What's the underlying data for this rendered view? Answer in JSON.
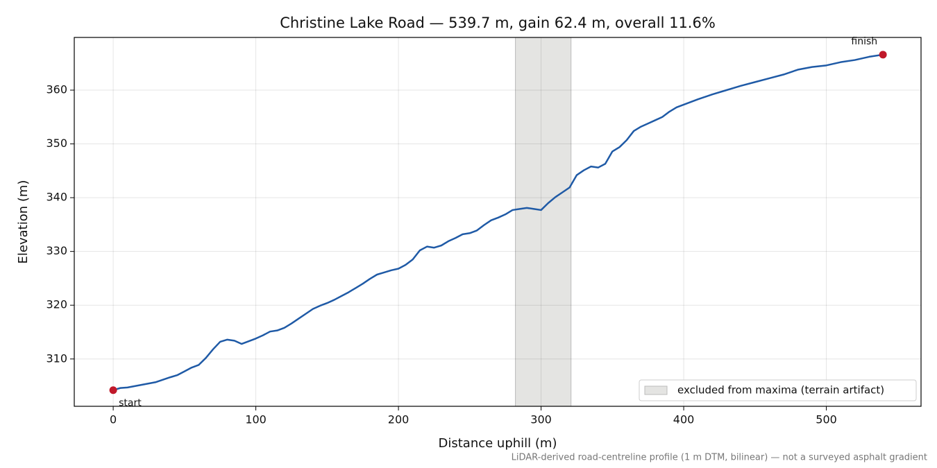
{
  "chart_data": {
    "type": "line",
    "title": "Christine Lake Road — 539.7 m, gain 62.4 m, overall 11.6%",
    "x_label": "Distance uphill (m)",
    "y_label": "Elevation (m)",
    "note": "LiDAR-derived road-centreline profile (1 m DTM, bilinear) — not a surveyed asphalt gradient",
    "x": [
      0,
      5,
      10,
      20,
      30,
      40,
      45,
      50,
      55,
      60,
      65,
      70,
      75,
      80,
      85,
      90,
      95,
      100,
      105,
      110,
      115,
      120,
      125,
      130,
      135,
      140,
      145,
      150,
      155,
      160,
      165,
      170,
      175,
      180,
      185,
      190,
      195,
      200,
      205,
      210,
      215,
      220,
      225,
      230,
      235,
      240,
      245,
      250,
      255,
      260,
      265,
      270,
      275,
      280,
      285,
      290,
      295,
      300,
      305,
      310,
      315,
      320,
      325,
      330,
      335,
      340,
      345,
      350,
      355,
      360,
      365,
      370,
      375,
      380,
      385,
      390,
      395,
      400,
      410,
      420,
      430,
      440,
      450,
      460,
      470,
      480,
      490,
      500,
      510,
      520,
      530,
      539.7
    ],
    "series": [
      {
        "color": "#1f5aa6",
        "values": [
          304.2,
          304.6,
          304.7,
          305.2,
          305.7,
          306.6,
          307.0,
          307.7,
          308.4,
          308.9,
          310.2,
          311.8,
          313.2,
          313.6,
          313.4,
          312.8,
          313.3,
          313.8,
          314.4,
          315.1,
          315.3,
          315.8,
          316.6,
          317.5,
          318.4,
          319.3,
          319.9,
          320.4,
          321.0,
          321.7,
          322.4,
          323.2,
          324.0,
          324.9,
          325.7,
          326.1,
          326.5,
          326.8,
          327.5,
          328.5,
          330.2,
          330.9,
          330.7,
          331.1,
          331.9,
          332.5,
          333.2,
          333.4,
          333.9,
          334.9,
          335.8,
          336.3,
          336.9,
          337.7,
          337.9,
          338.1,
          337.9,
          337.7,
          339.0,
          340.1,
          341.0,
          341.9,
          344.2,
          345.1,
          345.8,
          345.6,
          346.3,
          348.6,
          349.4,
          350.7,
          352.4,
          353.2,
          353.8,
          354.4,
          355.0,
          356.0,
          356.8,
          357.3,
          358.3,
          359.2,
          360.0,
          360.8,
          361.5,
          362.2,
          362.9,
          363.8,
          364.3,
          364.6,
          365.2,
          365.6,
          366.2,
          366.6
        ]
      }
    ],
    "annotations": [
      {
        "text": "start",
        "x": 0,
        "y": 304.2,
        "color": "#c0182a"
      },
      {
        "text": "finish",
        "x": 539.7,
        "y": 366.6,
        "color": "#c0182a"
      }
    ],
    "spans": [
      {
        "label": "excluded from maxima (terrain artifact)",
        "start": 282,
        "end": 321,
        "color": "#e4e4e2"
      }
    ],
    "legend": "lower right",
    "xlim": [
      -27.3,
      566.4
    ],
    "ylim": [
      301.2,
      369.8
    ],
    "xticks": [
      0,
      100,
      200,
      300,
      400,
      500
    ],
    "yticks": [
      310,
      320,
      330,
      340,
      350,
      360
    ],
    "grid": true
  }
}
